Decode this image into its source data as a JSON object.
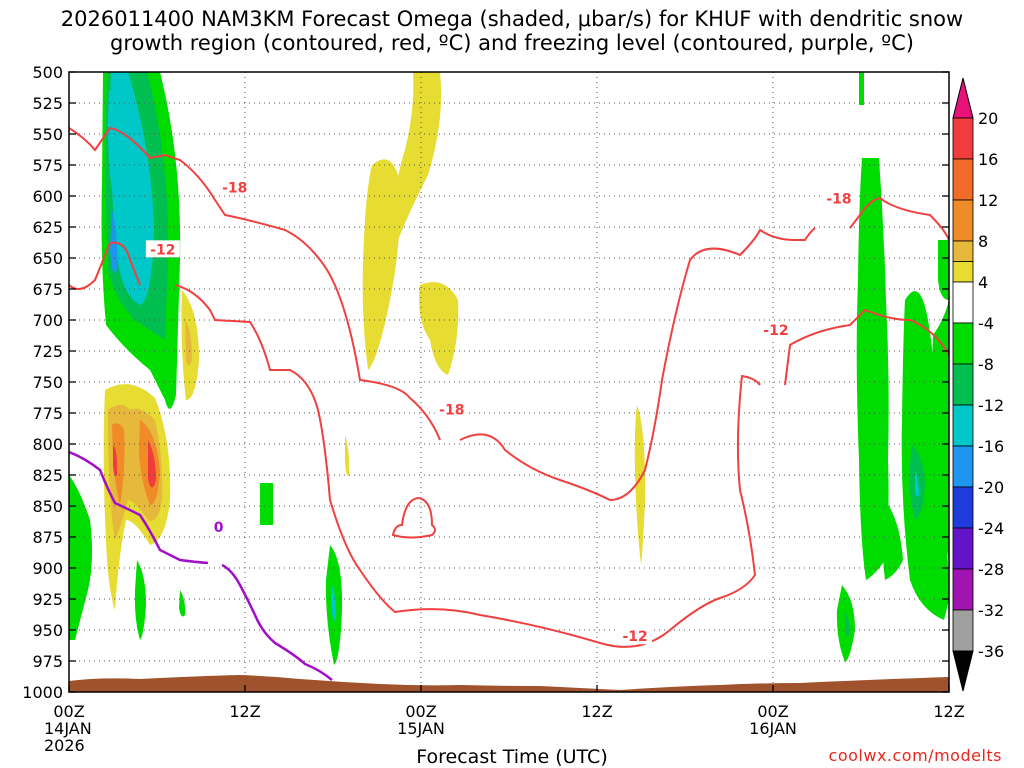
{
  "title_line1": "2026011400 NAM3KM Forecast Omega (shaded, μbar/s) for KHUF with dendritic snow",
  "title_line2": "growth region (contoured, red, ºC) and freezing level (contoured, purple, ºC)",
  "credit": "coolwx.com/modelts",
  "chart_data": {
    "type": "heatmap",
    "title": "2026011400 NAM3KM Forecast Omega (shaded, μbar/s) for KHUF with dendritic snow growth region (contoured, red, ºC) and freezing level (contoured, purple, ºC)",
    "xlabel": "Forecast Time (UTC)",
    "ylabel": "",
    "x_unit": "forecast hour",
    "xlim": [
      0,
      60
    ],
    "y_unit": "hPa",
    "ylim": [
      1000,
      500
    ],
    "x_ticks": [
      {
        "hour": 0,
        "lines": [
          "00Z",
          "14JAN",
          "2026"
        ]
      },
      {
        "hour": 12,
        "lines": [
          "12Z"
        ]
      },
      {
        "hour": 24,
        "lines": [
          "00Z",
          "15JAN"
        ]
      },
      {
        "hour": 36,
        "lines": [
          "12Z"
        ]
      },
      {
        "hour": 48,
        "lines": [
          "00Z",
          "16JAN"
        ]
      },
      {
        "hour": 60,
        "lines": [
          "12Z"
        ]
      }
    ],
    "y_ticks": [
      500,
      525,
      550,
      575,
      600,
      625,
      650,
      675,
      700,
      725,
      750,
      775,
      800,
      825,
      850,
      875,
      900,
      925,
      950,
      975,
      1000
    ],
    "grid": true,
    "colorbar": {
      "unit": "μbar/s",
      "labels": [
        20,
        16,
        12,
        8,
        4,
        -4,
        -8,
        -12,
        -16,
        -20,
        -24,
        -28,
        -32,
        -36
      ],
      "bins": [
        {
          "from": 20,
          "to": 99,
          "color": "#e8127a"
        },
        {
          "from": 16,
          "to": 20,
          "color": "#f03c3c"
        },
        {
          "from": 12,
          "to": 16,
          "color": "#f06c28"
        },
        {
          "from": 8,
          "to": 12,
          "color": "#f08c28"
        },
        {
          "from": 4,
          "to": 8,
          "color": "#e6b83c"
        },
        {
          "from": 0,
          "to": 4,
          "color": "#e6dc32"
        },
        {
          "from": -4,
          "to": 4,
          "color": "#ffffff"
        },
        {
          "from": -8,
          "to": -4,
          "color": "#00dc00"
        },
        {
          "from": -12,
          "to": -8,
          "color": "#00be50"
        },
        {
          "from": -16,
          "to": -12,
          "color": "#00c8c8"
        },
        {
          "from": -20,
          "to": -16,
          "color": "#1e96f0"
        },
        {
          "from": -24,
          "to": -20,
          "color": "#1e3cdc"
        },
        {
          "from": -28,
          "to": -24,
          "color": "#6414c8"
        },
        {
          "from": -32,
          "to": -28,
          "color": "#a014b4"
        },
        {
          "from": -36,
          "to": -32,
          "color": "#a0a0a0"
        },
        {
          "from": -99,
          "to": -36,
          "color": "#000000"
        }
      ]
    },
    "contours": [
      {
        "field": "temperature",
        "color": "#f04040",
        "level": -18,
        "label": "-18",
        "label_points": [
          {
            "hour": 11.3,
            "hPa": 593
          },
          {
            "hour": 26.1,
            "hPa": 772
          },
          {
            "hour": 52.5,
            "hPa": 602
          }
        ]
      },
      {
        "field": "temperature",
        "color": "#f04040",
        "level": -12,
        "label": "-12",
        "label_points": [
          {
            "hour": 6.4,
            "hPa": 643
          },
          {
            "hour": 38.6,
            "hPa": 955
          },
          {
            "hour": 48.2,
            "hPa": 708
          }
        ]
      },
      {
        "field": "temperature",
        "color": "#a010c8",
        "level": 0,
        "label": "0",
        "label_points": [
          {
            "hour": 10.2,
            "hPa": 867
          }
        ]
      }
    ],
    "terrain_color": "#a0522d"
  }
}
